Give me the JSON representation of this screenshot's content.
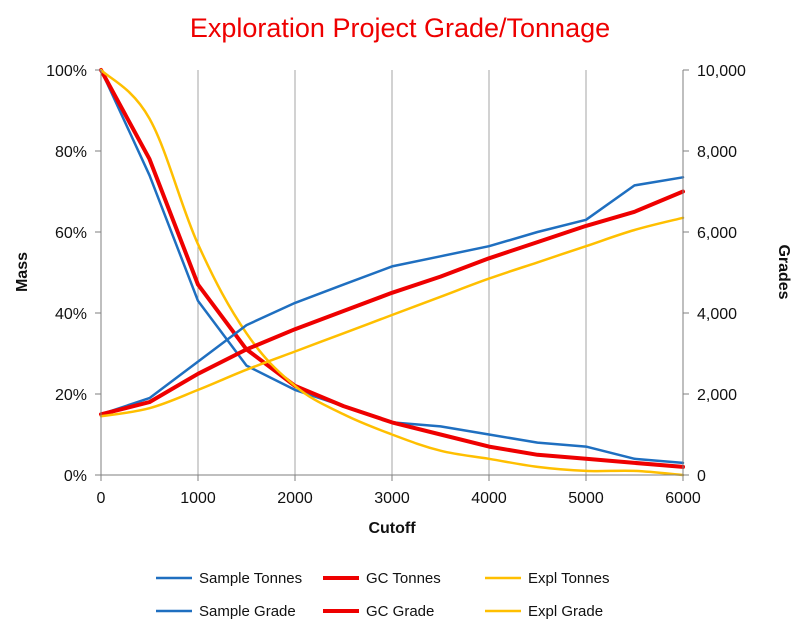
{
  "chart_data": {
    "type": "line",
    "title": "Exploration  Project Grade/Tonnage",
    "xlabel": "Cutoff",
    "ylabel_left": "Mass",
    "ylabel_right": "Grades",
    "x": [
      0,
      500,
      1000,
      1500,
      2000,
      2500,
      3000,
      3500,
      4000,
      4500,
      5000,
      5500,
      6000
    ],
    "xlim": [
      0,
      6000
    ],
    "x_ticks": [
      "0",
      "1000",
      "2000",
      "3000",
      "4000",
      "5000",
      "6000"
    ],
    "ylim_left": [
      0,
      100
    ],
    "y_ticks_left": [
      "0%",
      "20%",
      "40%",
      "60%",
      "80%",
      "100%"
    ],
    "ylim_right": [
      0,
      10000
    ],
    "y_ticks_right": [
      "0",
      "2,000",
      "4,000",
      "6,000",
      "8,000",
      "10,000"
    ],
    "grid": "vertical",
    "legend_position": "bottom",
    "series": [
      {
        "name": "Sample Tonnes",
        "axis": "left",
        "color": "#1f6fc0",
        "width": 2.5,
        "values": [
          100,
          74,
          43,
          27,
          21,
          17,
          13,
          12,
          10,
          8,
          7,
          4,
          3
        ]
      },
      {
        "name": "GC Tonnes",
        "axis": "left",
        "color": "#ee0000",
        "width": 4,
        "values": [
          100,
          78,
          47,
          31,
          22,
          17,
          13,
          10,
          7,
          5,
          4,
          3,
          2
        ]
      },
      {
        "name": "Expl Tonnes",
        "axis": "left",
        "color": "#ffbf00",
        "width": 2.5,
        "values": [
          100,
          88,
          57,
          35,
          22,
          15,
          10,
          6,
          4,
          2,
          1,
          1,
          0
        ]
      },
      {
        "name": "Sample Grade",
        "axis": "right",
        "color": "#1f6fc0",
        "width": 2.5,
        "values": [
          1500,
          1900,
          2800,
          3700,
          4250,
          4700,
          5150,
          5400,
          5650,
          6000,
          6300,
          7150,
          7350
        ]
      },
      {
        "name": "GC Grade",
        "axis": "right",
        "color": "#ee0000",
        "width": 4,
        "values": [
          1500,
          1800,
          2500,
          3100,
          3600,
          4050,
          4500,
          4900,
          5350,
          5750,
          6150,
          6500,
          7000
        ]
      },
      {
        "name": "Expl Grade",
        "axis": "right",
        "color": "#ffbf00",
        "width": 2.5,
        "values": [
          1450,
          1650,
          2100,
          2600,
          3050,
          3500,
          3950,
          4400,
          4850,
          5250,
          5650,
          6050,
          6350
        ]
      }
    ],
    "legend_order": [
      "Sample Tonnes",
      "GC Tonnes",
      "Expl Tonnes",
      "Sample Grade",
      "GC Grade",
      "Expl Grade"
    ]
  }
}
